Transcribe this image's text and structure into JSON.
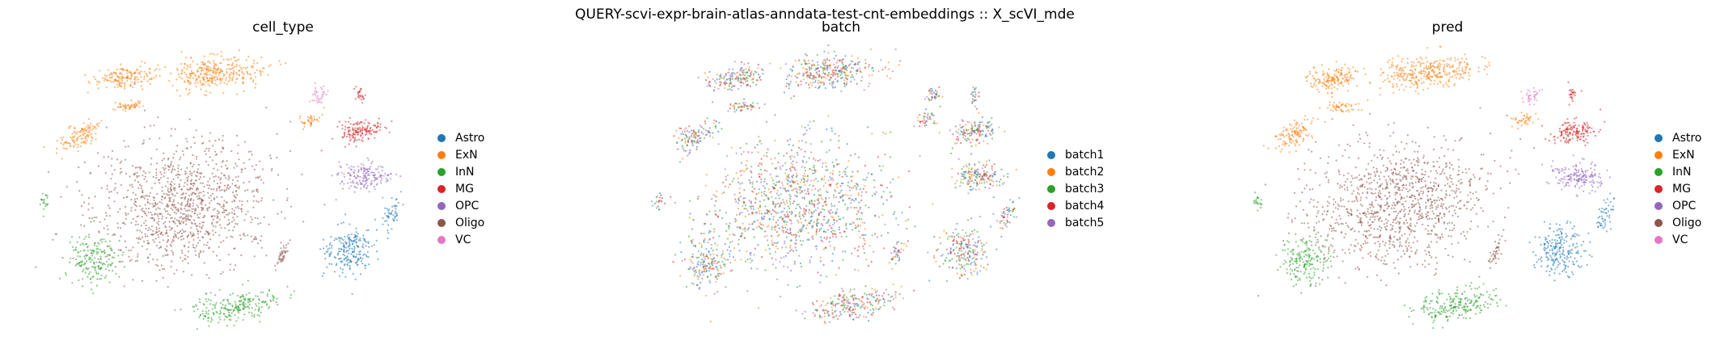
{
  "figure": {
    "suptitle": "QUERY-scvi-expr-brain-atlas-anndata-test-cnt-embeddings :: X_scVI_mde"
  },
  "palette": {
    "blue": "#1f77b4",
    "orange": "#ff7f0e",
    "green": "#2ca02c",
    "red": "#d62728",
    "purple": "#9467bd",
    "brown": "#8c564b",
    "pink": "#e377c2"
  },
  "chart_data": [
    {
      "type": "scatter",
      "title": "cell_type",
      "xlabel": "",
      "ylabel": "",
      "axes_visible": false,
      "grid": false,
      "legend_position": "right",
      "legend": [
        {
          "name": "Astro",
          "color": "#1f77b4"
        },
        {
          "name": "ExN",
          "color": "#ff7f0e"
        },
        {
          "name": "InN",
          "color": "#2ca02c"
        },
        {
          "name": "MG",
          "color": "#d62728"
        },
        {
          "name": "OPC",
          "color": "#9467bd"
        },
        {
          "name": "Oligo",
          "color": "#8c564b"
        },
        {
          "name": "VC",
          "color": "#e377c2"
        }
      ]
    },
    {
      "type": "scatter",
      "title": "batch",
      "xlabel": "",
      "ylabel": "",
      "axes_visible": false,
      "grid": false,
      "legend_position": "right",
      "legend": [
        {
          "name": "batch1",
          "color": "#1f77b4"
        },
        {
          "name": "batch2",
          "color": "#ff7f0e"
        },
        {
          "name": "batch3",
          "color": "#2ca02c"
        },
        {
          "name": "batch4",
          "color": "#d62728"
        },
        {
          "name": "batch5",
          "color": "#9467bd"
        }
      ]
    },
    {
      "type": "scatter",
      "title": "pred",
      "xlabel": "",
      "ylabel": "",
      "axes_visible": false,
      "grid": false,
      "legend_position": "right",
      "legend": [
        {
          "name": "Astro",
          "color": "#1f77b4"
        },
        {
          "name": "ExN",
          "color": "#ff7f0e"
        },
        {
          "name": "InN",
          "color": "#2ca02c"
        },
        {
          "name": "MG",
          "color": "#d62728"
        },
        {
          "name": "OPC",
          "color": "#9467bd"
        },
        {
          "name": "Oligo",
          "color": "#8c564b"
        },
        {
          "name": "VC",
          "color": "#e377c2"
        }
      ]
    }
  ]
}
